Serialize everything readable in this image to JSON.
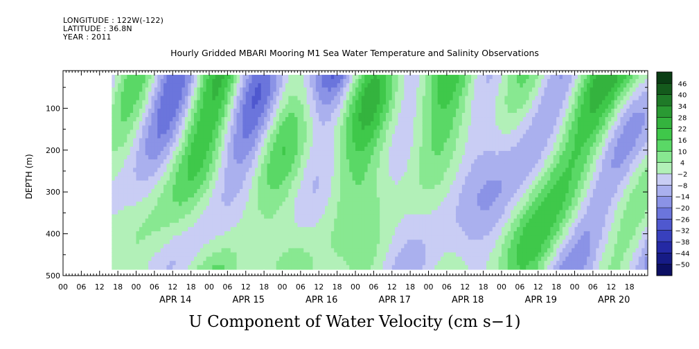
{
  "header": {
    "longitude": "LONGITUDE : 122W(-122)",
    "latitude": "LATITUDE : 36.8N",
    "year": "YEAR : 2011"
  },
  "chart_data": {
    "type": "heatmap",
    "title": "Hourly Gridded MBARI Mooring M1 Sea Water Temperature and Salinity Observations",
    "xlabel": "U Component of Water Velocity (cm s−1)",
    "ylabel": "DEPTH (m)",
    "x_start": "2011-04-13T00:00",
    "x_end": "2011-04-20T23:00",
    "x_hour_ticks": [
      "00",
      "06",
      "12",
      "18",
      "00",
      "06",
      "12",
      "18",
      "00",
      "06",
      "12",
      "18",
      "00",
      "06",
      "12",
      "18",
      "00",
      "06",
      "12",
      "18",
      "00",
      "06",
      "12",
      "18",
      "00",
      "06",
      "12",
      "18",
      "00",
      "06",
      "12",
      "18"
    ],
    "x_day_labels": [
      "APR 14",
      "APR 15",
      "APR 16",
      "APR 17",
      "APR 18",
      "APR 19",
      "APR 20"
    ],
    "y_ticks": [
      100,
      200,
      300,
      400,
      500
    ],
    "ylim": [
      500,
      10
    ],
    "y_reversed": true,
    "data_depth_range": [
      20,
      485
    ],
    "colorbar": {
      "ticks": [
        46,
        40,
        34,
        28,
        22,
        16,
        10,
        4,
        -2,
        -8,
        -14,
        -20,
        -26,
        -32,
        -38,
        -44,
        -50
      ],
      "colors": [
        "#0a3d14",
        "#145a1c",
        "#1f7a28",
        "#2a9a33",
        "#34b33e",
        "#3fc84a",
        "#5ad866",
        "#88e891",
        "#b2f0b8",
        "#c9cdf4",
        "#aab0ee",
        "#8b93e6",
        "#6b75dc",
        "#4f58cf",
        "#3840bd",
        "#2429a4",
        "#161b86",
        "#0c0f63"
      ]
    },
    "field_notes": "U velocity ranges roughly -20 to +20 cm/s, banded green (positive) and blue (negative) vertical structures over depth 20-485 m"
  }
}
